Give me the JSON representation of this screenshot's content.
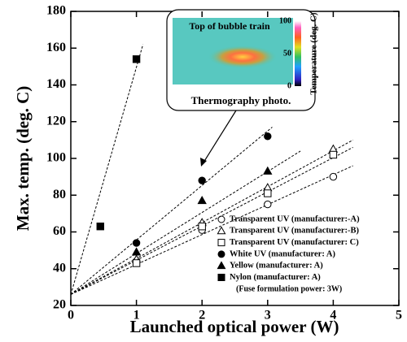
{
  "chart_data": {
    "type": "scatter",
    "xlabel": "Launched optical power (W)",
    "ylabel": "Max. temp. (deg. C)",
    "xlim": [
      0,
      5
    ],
    "xticks": [
      0,
      1,
      2,
      3,
      4,
      5
    ],
    "ylim": [
      20,
      180
    ],
    "yticks": [
      20,
      40,
      60,
      80,
      100,
      120,
      140,
      160,
      180
    ],
    "series": [
      {
        "name": "Transparent UV (manufacturer:-A)",
        "marker": "circle",
        "filled": false,
        "color": "#000000",
        "x": [
          1,
          2,
          3,
          4
        ],
        "values": [
          44,
          61,
          75,
          90
        ],
        "fit": {
          "x": [
            0,
            4.3
          ],
          "values": [
            26,
            96
          ]
        }
      },
      {
        "name": "Transparent UV (manufacturer:-B)",
        "marker": "triangle",
        "filled": false,
        "color": "#000000",
        "x": [
          1,
          2,
          3,
          4
        ],
        "values": [
          45,
          65,
          84,
          105
        ],
        "fit": {
          "x": [
            0,
            4.3
          ],
          "values": [
            26,
            110
          ]
        }
      },
      {
        "name": "Transparent UV (manufacturer: C)",
        "marker": "square",
        "filled": false,
        "color": "#000000",
        "x": [
          1,
          2,
          3,
          4
        ],
        "values": [
          43,
          63,
          81,
          102
        ],
        "fit": {
          "x": [
            0,
            4.3
          ],
          "values": [
            26,
            106
          ]
        }
      },
      {
        "name": "White UV (manufacturer: A)",
        "marker": "circle",
        "filled": true,
        "color": "#000000",
        "x": [
          1,
          2,
          3
        ],
        "values": [
          54,
          88,
          112
        ],
        "fit": {
          "x": [
            0,
            3.07
          ],
          "values": [
            26,
            117
          ]
        }
      },
      {
        "name": "Yellow (manufacturer: A)",
        "marker": "triangle",
        "filled": true,
        "color": "#000000",
        "x": [
          1,
          2,
          3
        ],
        "values": [
          49,
          77,
          93
        ],
        "fit": {
          "x": [
            0,
            3.5
          ],
          "values": [
            26,
            104
          ]
        }
      },
      {
        "name": "Nylon (manufacturer: A)",
        "marker": "square",
        "filled": true,
        "color": "#000000",
        "x": [
          0.45,
          1
        ],
        "values": [
          63,
          154
        ],
        "fit": {
          "x": [
            0,
            1.1
          ],
          "values": [
            26,
            162
          ]
        }
      }
    ],
    "note": "(Fuse formulation power: 3W)",
    "inset": {
      "label": "Top of bubble train",
      "caption": "Thermography photo.",
      "colorbar_label": "Temperature (deg. C)",
      "colorbar_ticks": [
        100,
        50,
        0
      ]
    }
  }
}
